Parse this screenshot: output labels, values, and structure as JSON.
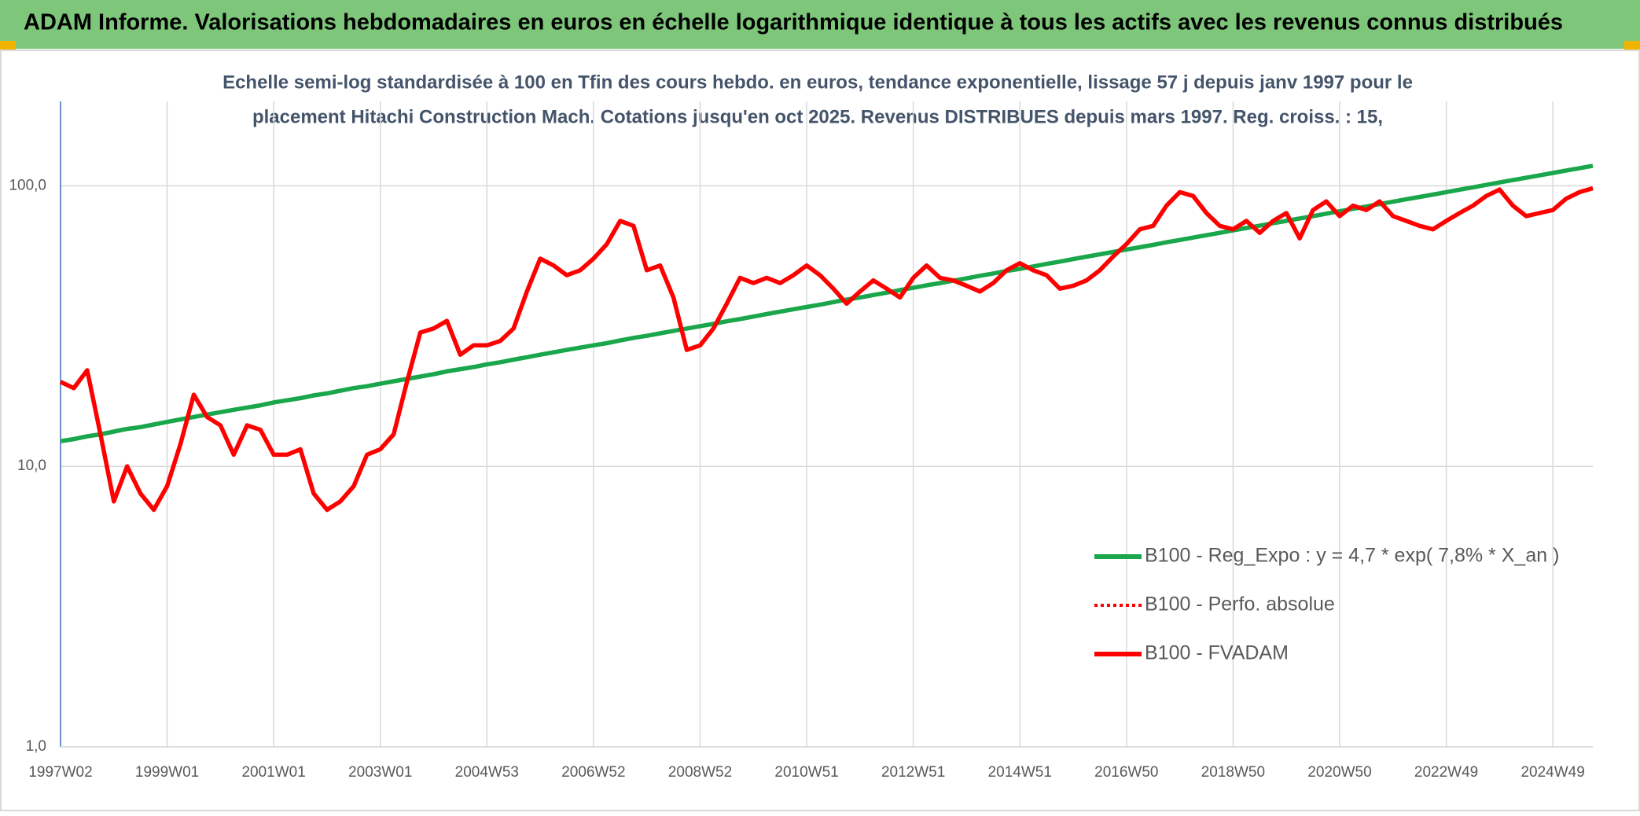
{
  "header": {
    "title": "ADAM Informe. Valorisations hebdomadaires en euros en échelle logarithmique identique à tous les actifs avec les revenus connus distribués"
  },
  "chart_data": {
    "type": "line",
    "subtitle": [
      "Echelle semi-log standardisée à 100 en Tfin des cours hebdo. en euros, tendance exponentielle, lissage 57 j depuis janv 1997 pour le",
      "placement Hitachi Construction Mach. Cotations jusqu'en oct 2025. Revenus DISTRIBUES depuis mars 1997. Reg. croiss. : 15,"
    ],
    "categories": [
      "1997W02",
      null,
      null,
      null,
      null,
      null,
      null,
      null,
      "1999W01",
      null,
      null,
      null,
      null,
      null,
      null,
      null,
      "2001W01",
      null,
      null,
      null,
      null,
      null,
      null,
      null,
      "2003W01",
      null,
      null,
      null,
      null,
      null,
      null,
      null,
      "2004W53",
      null,
      null,
      null,
      null,
      null,
      null,
      null,
      "2006W52",
      null,
      null,
      null,
      null,
      null,
      null,
      null,
      "2008W52",
      null,
      null,
      null,
      null,
      null,
      null,
      null,
      "2010W51",
      null,
      null,
      null,
      null,
      null,
      null,
      null,
      "2012W51",
      null,
      null,
      null,
      null,
      null,
      null,
      null,
      "2014W51",
      null,
      null,
      null,
      null,
      null,
      null,
      null,
      "2016W50",
      null,
      null,
      null,
      null,
      null,
      null,
      null,
      "2018W50",
      null,
      null,
      null,
      null,
      null,
      null,
      null,
      "2020W50",
      null,
      null,
      null,
      null,
      null,
      null,
      null,
      "2022W49",
      null,
      null,
      null,
      null,
      null,
      null,
      null,
      "2024W49",
      null,
      null,
      null
    ],
    "log_scale": true,
    "ylim": [
      1,
      200
    ],
    "yticks": [
      {
        "value": 1,
        "label": "1,0"
      },
      {
        "value": 10,
        "label": "10,0"
      },
      {
        "value": 100,
        "label": "100,0"
      }
    ],
    "grid": true,
    "legend": "right",
    "series": [
      {
        "name": "B100 - Reg_Expo : y = 4,7 * exp( 7,8% *  X_an )",
        "color": "#1aa64a",
        "dash": "solid",
        "values": [
          12.3,
          12.5,
          12.8,
          13.0,
          13.3,
          13.6,
          13.8,
          14.1,
          14.4,
          14.7,
          15.0,
          15.3,
          15.6,
          15.9,
          16.2,
          16.5,
          16.9,
          17.2,
          17.5,
          17.9,
          18.2,
          18.6,
          19.0,
          19.3,
          19.7,
          20.1,
          20.5,
          20.9,
          21.3,
          21.8,
          22.2,
          22.6,
          23.1,
          23.5,
          24.0,
          24.5,
          25.0,
          25.5,
          26.0,
          26.5,
          27.0,
          27.5,
          28.1,
          28.7,
          29.2,
          29.8,
          30.4,
          31.0,
          31.6,
          32.2,
          32.9,
          33.5,
          34.2,
          34.9,
          35.6,
          36.3,
          37.0,
          37.7,
          38.5,
          39.3,
          40.0,
          40.8,
          41.6,
          42.5,
          43.3,
          44.2,
          45.0,
          45.9,
          46.8,
          47.8,
          48.7,
          49.7,
          50.6,
          51.6,
          52.7,
          53.7,
          54.8,
          55.9,
          57.0,
          58.1,
          59.3,
          60.4,
          61.6,
          62.9,
          64.1,
          65.4,
          66.7,
          68.0,
          69.4,
          70.7,
          72.1,
          73.6,
          75.0,
          76.5,
          78.0,
          79.6,
          81.2,
          82.8,
          84.4,
          86.1,
          87.8,
          89.6,
          91.3,
          93.1,
          95.0,
          96.9,
          98.8,
          100.8,
          102.8,
          104.8,
          106.9,
          109.0,
          111.2,
          113.4,
          115.6,
          117.9
        ]
      },
      {
        "name": "B100 - Perfo. absolue",
        "color": "#ff0000",
        "dash": "dotted",
        "values": [
          20,
          19,
          22,
          13,
          7.5,
          10,
          8,
          7,
          8.5,
          12,
          18,
          15,
          14,
          11,
          14,
          13.5,
          11,
          11,
          11.5,
          8,
          7,
          7.5,
          8.5,
          11,
          11.5,
          13,
          20,
          30,
          31,
          33,
          25,
          27,
          27,
          28,
          31,
          42,
          55,
          52,
          48,
          50,
          55,
          62,
          75,
          72,
          50,
          52,
          40,
          26,
          27,
          31,
          38,
          47,
          45,
          47,
          45,
          48,
          52,
          48,
          43,
          38,
          42,
          46,
          43,
          40,
          47,
          52,
          47,
          46,
          44,
          42,
          45,
          50,
          53,
          50,
          48,
          43,
          44,
          46,
          50,
          56,
          62,
          70,
          72,
          85,
          95,
          92,
          80,
          72,
          70,
          75,
          68,
          75,
          80,
          65,
          82,
          88,
          78,
          85,
          82,
          88,
          78,
          75,
          72,
          70,
          75,
          80,
          85,
          92,
          97,
          85,
          78,
          80,
          82,
          90,
          95,
          98
        ]
      },
      {
        "name": "B100 - FVADAM",
        "color": "#ff0000",
        "dash": "solid",
        "values": [
          20,
          19,
          22,
          13,
          7.5,
          10,
          8,
          7,
          8.5,
          12,
          18,
          15,
          14,
          11,
          14,
          13.5,
          11,
          11,
          11.5,
          8,
          7,
          7.5,
          8.5,
          11,
          11.5,
          13,
          20,
          30,
          31,
          33,
          25,
          27,
          27,
          28,
          31,
          42,
          55,
          52,
          48,
          50,
          55,
          62,
          75,
          72,
          50,
          52,
          40,
          26,
          27,
          31,
          38,
          47,
          45,
          47,
          45,
          48,
          52,
          48,
          43,
          38,
          42,
          46,
          43,
          40,
          47,
          52,
          47,
          46,
          44,
          42,
          45,
          50,
          53,
          50,
          48,
          43,
          44,
          46,
          50,
          56,
          62,
          70,
          72,
          85,
          95,
          92,
          80,
          72,
          70,
          75,
          68,
          75,
          80,
          65,
          82,
          88,
          78,
          85,
          82,
          88,
          78,
          75,
          72,
          70,
          75,
          80,
          85,
          92,
          97,
          85,
          78,
          80,
          82,
          90,
          95,
          98
        ]
      }
    ]
  }
}
